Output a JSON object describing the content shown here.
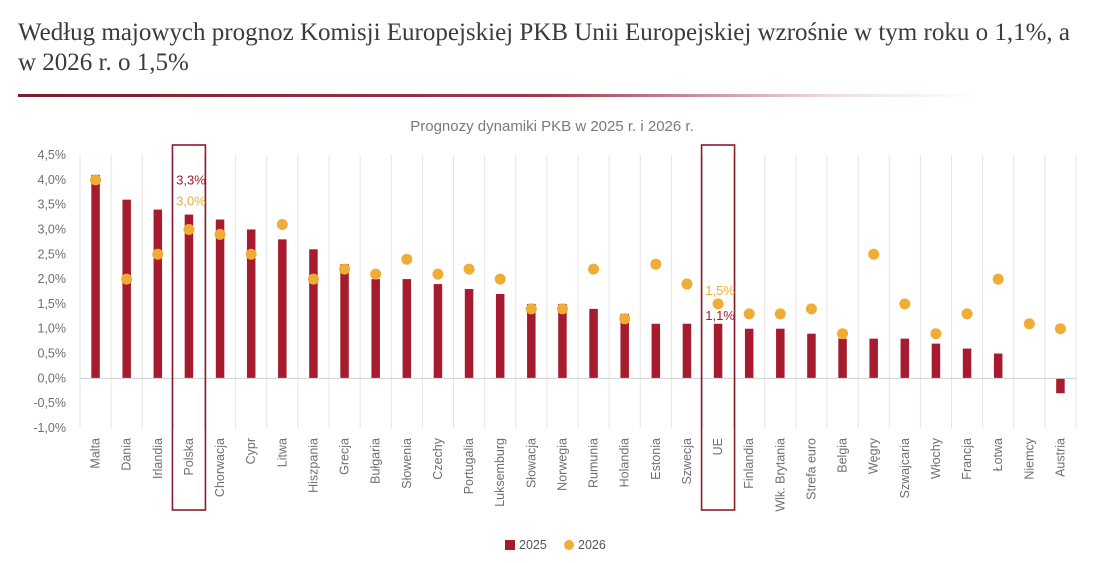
{
  "headline": "Według majowych prognoz Komisji Europejskiej PKB Unii Europejskiej wzrośnie w tym roku o 1,1%, a w 2026 r. o 1,5%",
  "colors": {
    "bar": "#a61c2e",
    "dot": "#f0ad35",
    "accent_line": "#7a1c2a",
    "box": "#8a1c2c"
  },
  "chart_data": {
    "type": "bar",
    "title": "Prognozy dynamiki PKB w 2025 r. i 2026 r.",
    "xlabel": "",
    "ylabel": "",
    "ylim": [
      -1.0,
      4.5
    ],
    "y_ticks": [
      "4,5%",
      "4,0%",
      "3,5%",
      "3,0%",
      "2,5%",
      "2,0%",
      "1,5%",
      "1,0%",
      "0,5%",
      "0,0%",
      "-0,5%",
      "-1,0%"
    ],
    "grid": "vertical",
    "legend_position": "bottom",
    "categories": [
      "Malta",
      "Dania",
      "Irlandia",
      "Polska",
      "Chorwacja",
      "Cypr",
      "Litwa",
      "Hiszpania",
      "Grecja",
      "Bułgaria",
      "Słowenia",
      "Czechy",
      "Portugalia",
      "Luksemburg",
      "Słowacja",
      "Norwegia",
      "Rumunia",
      "Holandia",
      "Estonia",
      "Szwecja",
      "UE",
      "Finlandia",
      "Wlk. Brytania",
      "Strefa euro",
      "Belgia",
      "Węgry",
      "Szwajcaria",
      "Włochy",
      "Francja",
      "Łotwa",
      "Niemcy",
      "Austria"
    ],
    "series": [
      {
        "name": "2025",
        "kind": "bar",
        "color": "#a61c2e",
        "values": [
          4.1,
          3.6,
          3.4,
          3.3,
          3.2,
          3.0,
          2.8,
          2.6,
          2.3,
          2.0,
          2.0,
          1.9,
          1.8,
          1.7,
          1.5,
          1.5,
          1.4,
          1.3,
          1.1,
          1.1,
          1.1,
          1.0,
          1.0,
          0.9,
          0.8,
          0.8,
          0.8,
          0.7,
          0.6,
          0.5,
          0.0,
          -0.3
        ]
      },
      {
        "name": "2026",
        "kind": "dot",
        "color": "#f0ad35",
        "values": [
          4.0,
          2.0,
          2.5,
          3.0,
          2.9,
          2.5,
          3.1,
          2.0,
          2.2,
          2.1,
          2.4,
          2.1,
          2.2,
          2.0,
          1.4,
          1.4,
          2.2,
          1.2,
          2.3,
          1.9,
          1.5,
          1.3,
          1.3,
          1.4,
          0.9,
          2.5,
          1.5,
          0.9,
          1.3,
          2.0,
          1.1,
          1.0
        ]
      }
    ],
    "annotations": [
      {
        "category": "Polska",
        "text_2025": "3,3%",
        "text_2026": "3,0%"
      },
      {
        "category": "UE",
        "text_2025": "1,1%",
        "text_2026": "1,5%"
      }
    ],
    "highlighted_categories": [
      "Polska",
      "UE"
    ]
  }
}
